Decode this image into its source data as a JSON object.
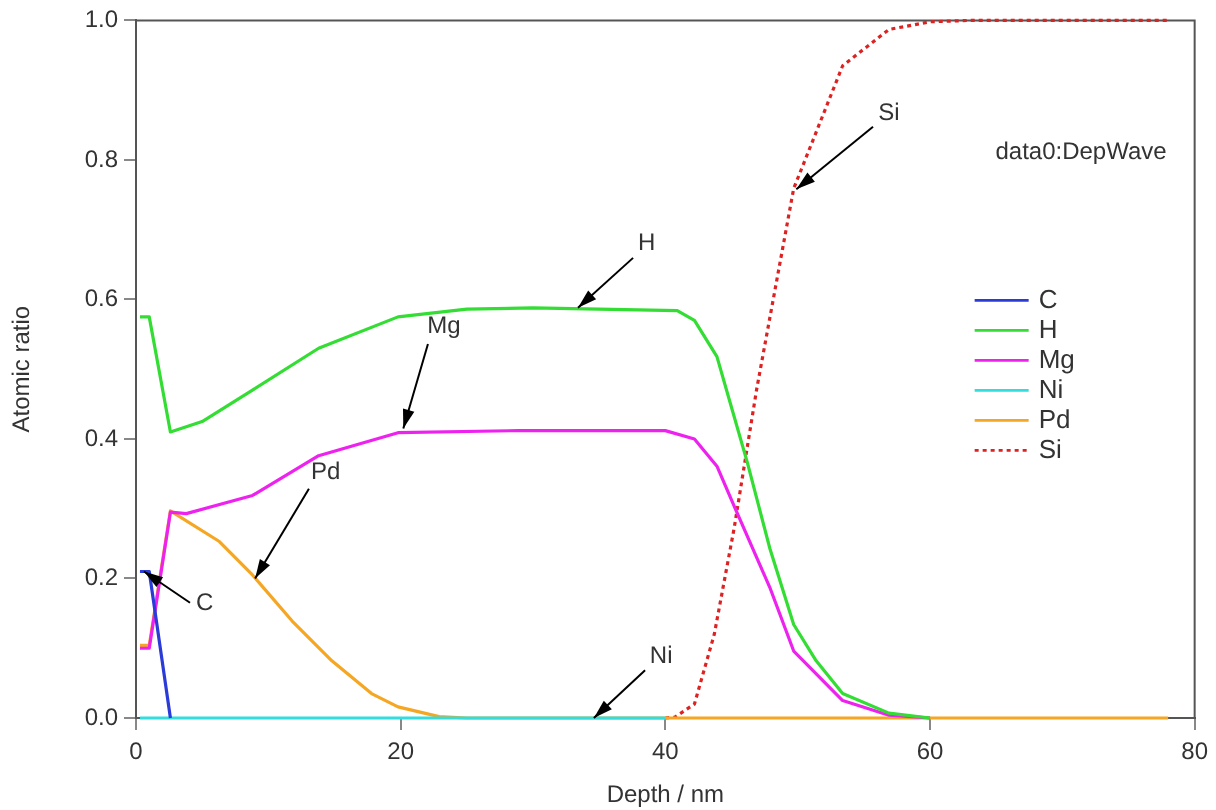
{
  "chart_data": {
    "type": "line",
    "xlabel": "Depth / nm",
    "ylabel": "Atomic ratio",
    "xlim": [
      0,
      80
    ],
    "xticks": [
      0,
      20,
      40,
      60,
      80
    ],
    "ylim": [
      0,
      1
    ],
    "yticks": [
      {
        "value": 0,
        "label": "0.0"
      },
      {
        "value": 0.2,
        "label": "0.2"
      },
      {
        "value": 0.4,
        "label": "0.4"
      },
      {
        "value": 0.6,
        "label": "0.6"
      },
      {
        "value": 0.8,
        "label": "0.8"
      },
      {
        "value": 1,
        "label": "1.0"
      }
    ],
    "grid": false,
    "legend": "right",
    "marker": "none",
    "series": [
      {
        "name": "C",
        "color": "#2a3bd8",
        "x": [
          0.3,
          1.0,
          2.6
        ],
        "values": [
          0.21,
          0.21,
          0
        ]
      },
      {
        "name": "H",
        "color": "#33dd33",
        "x": [
          0.3,
          1.0,
          2.6,
          5,
          8.8,
          13.8,
          19.8,
          25,
          30,
          40.9,
          42.2,
          43.9,
          44.9,
          46.2,
          47.9,
          49.7,
          51.4,
          53.4,
          56.9,
          60
        ],
        "values": [
          0.575,
          0.575,
          0.41,
          0.425,
          0.47,
          0.53,
          0.575,
          0.586,
          0.588,
          0.584,
          0.57,
          0.518,
          0.452,
          0.366,
          0.243,
          0.134,
          0.082,
          0.035,
          0.007,
          0
        ]
      },
      {
        "name": "Mg",
        "color": "#ee22ee",
        "x": [
          0.3,
          1.0,
          2.6,
          3.8,
          8.8,
          13.8,
          19.8,
          28.9,
          40,
          42.2,
          43.9,
          45.4,
          47.9,
          49.7,
          53.4,
          56.9,
          60
        ],
        "values": [
          0.1,
          0.1,
          0.295,
          0.293,
          0.319,
          0.376,
          0.409,
          0.412,
          0.412,
          0.4,
          0.361,
          0.295,
          0.187,
          0.096,
          0.025,
          0.004,
          0
        ]
      },
      {
        "name": "Ni",
        "color": "#33dddd",
        "x": [
          0.3,
          40
        ],
        "values": [
          0,
          0
        ]
      },
      {
        "name": "Pd",
        "color": "#f5a623",
        "x": [
          0.3,
          1.0,
          2.6,
          6.3,
          8.8,
          11.8,
          14.8,
          17.8,
          19.8,
          22.9,
          25,
          78
        ],
        "values": [
          0.104,
          0.104,
          0.297,
          0.253,
          0.205,
          0.139,
          0.082,
          0.035,
          0.016,
          0.002,
          0,
          0
        ]
      },
      {
        "name": "Si",
        "color": "#dd2222",
        "line_style": "dotted",
        "x": [
          40,
          40.7,
          42.2,
          43.7,
          45.2,
          46.9,
          49.7,
          53.4,
          56.9,
          60,
          63,
          78
        ],
        "values": [
          0,
          0.001,
          0.02,
          0.12,
          0.272,
          0.471,
          0.759,
          0.935,
          0.987,
          0.998,
          1,
          1
        ]
      }
    ],
    "annotations": [
      {
        "text": "H",
        "x": 33.4,
        "y": 0.588
      },
      {
        "text": "Mg",
        "x": 20.2,
        "y": 0.415
      },
      {
        "text": "Pd",
        "x": 9.0,
        "y": 0.2
      },
      {
        "text": "C",
        "x": 0.6,
        "y": 0.21
      },
      {
        "text": "Ni",
        "x": 34.6,
        "y": 0
      },
      {
        "text": "Si",
        "x": 49.9,
        "y": 0.758
      },
      "data0:DepWave"
    ]
  }
}
